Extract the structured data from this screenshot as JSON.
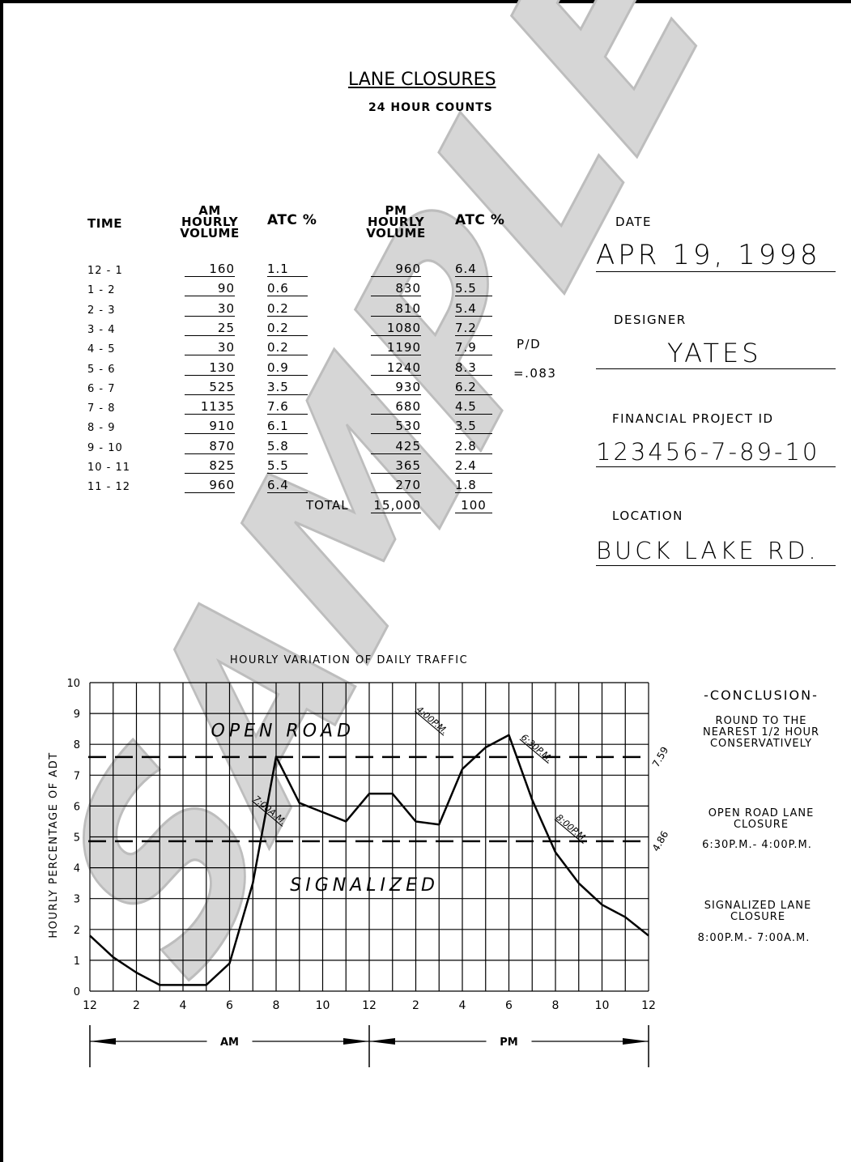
{
  "header": {
    "title": "LANE CLOSURES",
    "subtitle": "24 HOUR COUNTS"
  },
  "table": {
    "headers": {
      "time": "TIME",
      "am_volume": [
        "AM",
        "HOURLY",
        "VOLUME"
      ],
      "atc_am": "ATC %",
      "pm_volume": [
        "PM",
        "HOURLY",
        "VOLUME"
      ],
      "atc_pm": "ATC %"
    },
    "rows": [
      {
        "time": "12 - 1",
        "am": "160",
        "am_pct": "1.1",
        "pm": "960",
        "pm_pct": "6.4"
      },
      {
        "time": "1 - 2",
        "am": "90",
        "am_pct": "0.6",
        "pm": "830",
        "pm_pct": "5.5"
      },
      {
        "time": "2 - 3",
        "am": "30",
        "am_pct": "0.2",
        "pm": "810",
        "pm_pct": "5.4"
      },
      {
        "time": "3 - 4",
        "am": "25",
        "am_pct": "0.2",
        "pm": "1080",
        "pm_pct": "7.2"
      },
      {
        "time": "4 - 5",
        "am": "30",
        "am_pct": "0.2",
        "pm": "1190",
        "pm_pct": "7.9"
      },
      {
        "time": "5 - 6",
        "am": "130",
        "am_pct": "0.9",
        "pm": "1240",
        "pm_pct": "8.3"
      },
      {
        "time": "6 - 7",
        "am": "525",
        "am_pct": "3.5",
        "pm": "930",
        "pm_pct": "6.2"
      },
      {
        "time": "7 - 8",
        "am": "1135",
        "am_pct": "7.6",
        "pm": "680",
        "pm_pct": "4.5"
      },
      {
        "time": "8 - 9",
        "am": "910",
        "am_pct": "6.1",
        "pm": "530",
        "pm_pct": "3.5"
      },
      {
        "time": "9 - 10",
        "am": "870",
        "am_pct": "5.8",
        "pm": "425",
        "pm_pct": "2.8"
      },
      {
        "time": "10 - 11",
        "am": "825",
        "am_pct": "5.5",
        "pm": "365",
        "pm_pct": "2.4"
      },
      {
        "time": "11 - 12",
        "am": "960",
        "am_pct": "6.4",
        "pm": "270",
        "pm_pct": "1.8"
      }
    ],
    "total_label": "TOTAL",
    "total_volume": "15,000",
    "total_pct": "100",
    "pd_label": "P/D",
    "pd_value": "=.083"
  },
  "fields": {
    "date_label": "DATE",
    "date_value": "APR 19, 1998",
    "designer_label": "DESIGNER",
    "designer_value": "YATES",
    "project_label": "FINANCIAL PROJECT ID",
    "project_value": "123456-7-89-10",
    "location_label": "LOCATION",
    "location_value": "BUCK LAKE RD."
  },
  "watermark": "SAMPLE",
  "chart_data": {
    "type": "line",
    "title": "HOURLY VARIATION OF DAILY TRAFFIC",
    "ylabel": "HOURLY PERCENTAGE OF ADT",
    "ylim": [
      0,
      10
    ],
    "yticks": [
      "0",
      "1",
      "2",
      "3",
      "4",
      "5",
      "6",
      "7",
      "8",
      "9",
      "10"
    ],
    "xlim": [
      0,
      24
    ],
    "xtick_labels": [
      "12",
      "2",
      "4",
      "6",
      "8",
      "10",
      "12",
      "2",
      "4",
      "6",
      "8",
      "10",
      "12"
    ],
    "grid": true,
    "x": [
      0,
      1,
      2,
      3,
      4,
      5,
      6,
      7,
      8,
      9,
      10,
      11,
      12,
      13,
      14,
      15,
      16,
      17,
      18,
      19,
      20,
      21,
      22,
      23,
      24
    ],
    "series": [
      {
        "values": [
          1.8,
          1.1,
          0.6,
          0.2,
          0.2,
          0.2,
          0.9,
          3.5,
          7.6,
          6.1,
          5.8,
          5.5,
          6.4,
          6.4,
          5.5,
          5.4,
          7.2,
          7.9,
          8.3,
          6.2,
          4.5,
          3.5,
          2.8,
          2.4,
          1.8
        ]
      }
    ],
    "reference_lines": [
      {
        "y": 7.59,
        "label": "7.59",
        "zone_label": "OPEN ROAD"
      },
      {
        "y": 4.86,
        "label": "4.86",
        "zone_label": "SIGNALIZED"
      }
    ],
    "annotations": [
      {
        "x": 7,
        "y": 6.2,
        "text": "7:00A.M."
      },
      {
        "x": 14,
        "y": 9.1,
        "text": "4:00P.M."
      },
      {
        "x": 18.5,
        "y": 8.2,
        "text": "6:30P.M."
      },
      {
        "x": 20,
        "y": 5.6,
        "text": "8:00P.M."
      }
    ],
    "period_labels": [
      "AM",
      "PM"
    ]
  },
  "conclusion": {
    "heading": "-CONCLUSION-",
    "round_note": [
      "ROUND TO THE",
      "NEAREST 1/2 HOUR",
      "CONSERVATIVELY"
    ],
    "open_road_title": [
      "OPEN ROAD LANE",
      "CLOSURE"
    ],
    "open_road_time": "6:30P.M.- 4:00P.M.",
    "signalized_title": [
      "SIGNALIZED LANE",
      "CLOSURE"
    ],
    "signalized_time": "8:00P.M.- 7:00A.M."
  }
}
